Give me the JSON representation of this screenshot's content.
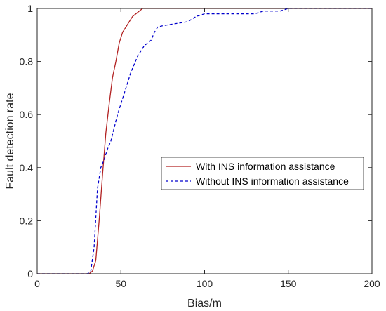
{
  "chart_data": {
    "type": "line",
    "title": "",
    "xlabel": "Bias/m",
    "ylabel": "Fault detection rate",
    "xlim": [
      0,
      200
    ],
    "ylim": [
      0,
      1
    ],
    "x_ticks": [
      0,
      50,
      100,
      150,
      200
    ],
    "y_ticks": [
      0,
      0.2,
      0.4,
      0.6,
      0.8,
      1
    ],
    "x_tick_labels": [
      "0",
      "50",
      "100",
      "150",
      "200"
    ],
    "y_tick_labels": [
      "0",
      "0.2",
      "0.4",
      "0.6",
      "0.8",
      "1"
    ],
    "grid": false,
    "legend_position": "center-right",
    "series": [
      {
        "name": "With INS information assistance",
        "color": "#b22222",
        "style": "solid",
        "x": [
          0,
          31,
          33,
          35,
          37,
          39,
          41,
          43,
          45,
          47,
          49,
          51,
          53,
          55,
          57,
          59,
          61,
          63,
          65,
          70,
          80,
          100,
          150,
          200
        ],
        "y": [
          0,
          0,
          0.01,
          0.05,
          0.2,
          0.37,
          0.53,
          0.64,
          0.74,
          0.8,
          0.87,
          0.91,
          0.93,
          0.95,
          0.97,
          0.98,
          0.99,
          1.0,
          1.0,
          1.0,
          1.0,
          1.0,
          1.0,
          1.0
        ]
      },
      {
        "name": "Without INS information assistance",
        "color": "#0000cd",
        "style": "dashed",
        "x": [
          0,
          30,
          32,
          34,
          36,
          38,
          40,
          42,
          44,
          46,
          48,
          50,
          52,
          54,
          56,
          58,
          60,
          62,
          64,
          66,
          68,
          70,
          72,
          75,
          80,
          85,
          90,
          95,
          100,
          105,
          110,
          120,
          130,
          135,
          140,
          145,
          150,
          155,
          160,
          165,
          170,
          180,
          200
        ],
        "y": [
          0,
          0,
          0.01,
          0.1,
          0.32,
          0.4,
          0.43,
          0.47,
          0.5,
          0.55,
          0.6,
          0.64,
          0.68,
          0.72,
          0.76,
          0.79,
          0.82,
          0.84,
          0.86,
          0.87,
          0.88,
          0.91,
          0.93,
          0.935,
          0.94,
          0.945,
          0.95,
          0.97,
          0.98,
          0.98,
          0.98,
          0.98,
          0.98,
          0.99,
          0.99,
          0.99,
          1.0,
          1.0,
          1.0,
          1.0,
          1.0,
          1.0,
          1.0
        ]
      }
    ]
  }
}
